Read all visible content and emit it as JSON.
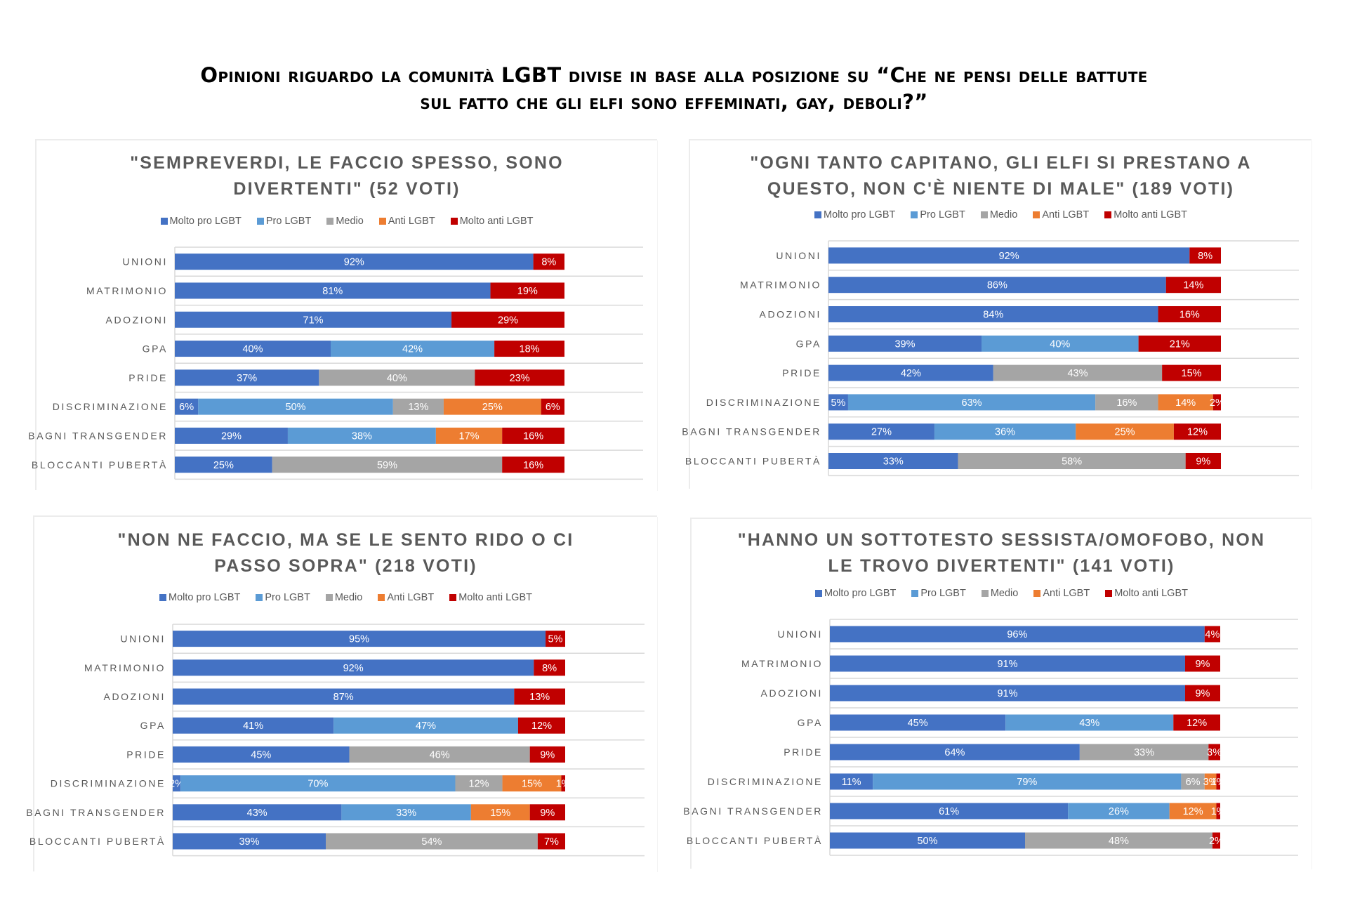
{
  "main_title": {
    "line1": "Opinioni riguardo la comunità LGBT divise in base alla posizione su “Che ne pensi delle battute",
    "line2": "sul fatto che gli elfi sono effeminati, gay, deboli?”"
  },
  "legend": [
    {
      "label": "Molto pro LGBT",
      "color": "#4472C4"
    },
    {
      "label": "Pro LGBT",
      "color": "#5B9BD5"
    },
    {
      "label": "Medio",
      "color": "#A5A5A5"
    },
    {
      "label": "Anti LGBT",
      "color": "#ED7D31"
    },
    {
      "label": "Molto anti LGBT",
      "color": "#C00000"
    }
  ],
  "chart_data": [
    {
      "type": "bar",
      "orientation": "horizontal",
      "stacked": "percent",
      "title_lines": [
        "\"SEMPREVERDI, LE FACCIO SPESSO, SONO",
        "DIVERTENTI\" (52 VOTI)"
      ],
      "title": "\"SEMPREVERDI, LE FACCIO SPESSO, SONO DIVERTENTI\" (52 VOTI)",
      "legend_position": "top",
      "grid": true,
      "xlim": [
        0,
        100
      ],
      "categories": [
        "UNIONI",
        "MATRIMONIO",
        "ADOZIONI",
        "GPA",
        "PRIDE",
        "DISCRIMINAZIONE",
        "BAGNI TRANSGENDER",
        "BLOCCANTI PUBERTÀ"
      ],
      "series": [
        {
          "name": "Molto pro LGBT",
          "values": [
            92,
            81,
            71,
            40,
            37,
            6,
            29,
            25
          ]
        },
        {
          "name": "Pro LGBT",
          "values": [
            0,
            0,
            0,
            42,
            0,
            50,
            38,
            0
          ]
        },
        {
          "name": "Medio",
          "values": [
            0,
            0,
            0,
            0,
            40,
            13,
            0,
            59
          ]
        },
        {
          "name": "Anti LGBT",
          "values": [
            0,
            0,
            0,
            0,
            0,
            25,
            17,
            0
          ]
        },
        {
          "name": "Molto anti LGBT",
          "values": [
            8,
            19,
            29,
            18,
            23,
            6,
            16,
            16
          ]
        }
      ]
    },
    {
      "type": "bar",
      "orientation": "horizontal",
      "stacked": "percent",
      "title_lines": [
        "\"OGNI TANTO CAPITANO, GLI ELFI SI PRESTANO A",
        "QUESTO, NON C'È NIENTE DI MALE\" (189 VOTI)"
      ],
      "title": "\"OGNI TANTO CAPITANO, GLI ELFI SI PRESTANO A QUESTO, NON C'È NIENTE DI MALE\" (189 VOTI)",
      "legend_position": "top",
      "grid": true,
      "xlim": [
        0,
        100
      ],
      "categories": [
        "UNIONI",
        "MATRIMONIO",
        "ADOZIONI",
        "GPA",
        "PRIDE",
        "DISCRIMINAZIONE",
        "BAGNI TRANSGENDER",
        "BLOCCANTI PUBERTÀ"
      ],
      "series": [
        {
          "name": "Molto pro LGBT",
          "values": [
            92,
            86,
            84,
            39,
            42,
            5,
            27,
            33
          ]
        },
        {
          "name": "Pro LGBT",
          "values": [
            0,
            0,
            0,
            40,
            0,
            63,
            36,
            0
          ]
        },
        {
          "name": "Medio",
          "values": [
            0,
            0,
            0,
            0,
            43,
            16,
            0,
            58
          ]
        },
        {
          "name": "Anti LGBT",
          "values": [
            0,
            0,
            0,
            0,
            0,
            14,
            25,
            0
          ]
        },
        {
          "name": "Molto anti LGBT",
          "values": [
            8,
            14,
            16,
            21,
            15,
            2,
            12,
            9
          ]
        }
      ]
    },
    {
      "type": "bar",
      "orientation": "horizontal",
      "stacked": "percent",
      "title_lines": [
        "\"NON NE FACCIO, MA SE LE SENTO RIDO O CI",
        "PASSO SOPRA\" (218 VOTI)"
      ],
      "title": "\"NON NE FACCIO, MA SE LE SENTO RIDO O CI PASSO SOPRA\" (218 VOTI)",
      "legend_position": "top",
      "grid": true,
      "xlim": [
        0,
        100
      ],
      "categories": [
        "UNIONI",
        "MATRIMONIO",
        "ADOZIONI",
        "GPA",
        "PRIDE",
        "DISCRIMINAZIONE",
        "BAGNI TRANSGENDER",
        "BLOCCANTI PUBERTÀ"
      ],
      "series": [
        {
          "name": "Molto pro LGBT",
          "values": [
            95,
            92,
            87,
            41,
            45,
            2,
            43,
            39
          ]
        },
        {
          "name": "Pro LGBT",
          "values": [
            0,
            0,
            0,
            47,
            0,
            70,
            33,
            0
          ]
        },
        {
          "name": "Medio",
          "values": [
            0,
            0,
            0,
            0,
            46,
            12,
            0,
            54
          ]
        },
        {
          "name": "Anti LGBT",
          "values": [
            0,
            0,
            0,
            0,
            0,
            15,
            15,
            0
          ]
        },
        {
          "name": "Molto anti LGBT",
          "values": [
            5,
            8,
            13,
            12,
            9,
            1,
            9,
            7
          ]
        }
      ]
    },
    {
      "type": "bar",
      "orientation": "horizontal",
      "stacked": "percent",
      "title_lines": [
        "\"HANNO UN SOTTOTESTO SESSISTA/OMOFOBO, NON",
        "LE TROVO DIVERTENTI\" (141 VOTI)"
      ],
      "title": "\"HANNO UN SOTTOTESTO SESSISTA/OMOFOBO, NON LE TROVO DIVERTENTI\" (141 VOTI)",
      "legend_position": "top",
      "grid": true,
      "xlim": [
        0,
        100
      ],
      "categories": [
        "UNIONI",
        "MATRIMONIO",
        "ADOZIONI",
        "GPA",
        "PRIDE",
        "DISCRIMINAZIONE",
        "BAGNI TRANSGENDER",
        "BLOCCANTI PUBERTÀ"
      ],
      "series": [
        {
          "name": "Molto pro LGBT",
          "values": [
            96,
            91,
            91,
            45,
            64,
            11,
            61,
            50
          ]
        },
        {
          "name": "Pro LGBT",
          "values": [
            0,
            0,
            0,
            43,
            0,
            79,
            26,
            0
          ]
        },
        {
          "name": "Medio",
          "values": [
            0,
            0,
            0,
            0,
            33,
            6,
            0,
            48
          ]
        },
        {
          "name": "Anti LGBT",
          "values": [
            0,
            0,
            0,
            0,
            0,
            3,
            12,
            0
          ]
        },
        {
          "name": "Molto anti LGBT",
          "values": [
            4,
            9,
            9,
            12,
            3,
            1,
            1,
            2
          ]
        }
      ]
    }
  ]
}
